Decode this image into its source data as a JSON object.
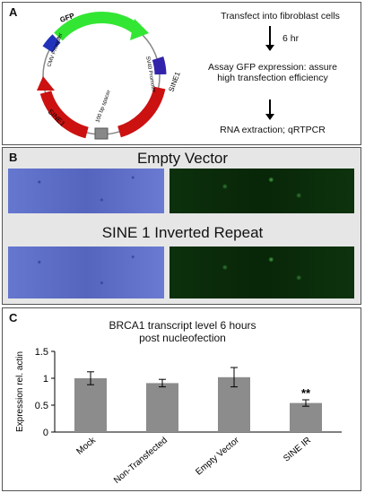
{
  "panel_a": {
    "label": "A",
    "plasmid_labels": {
      "gfp": "GFP",
      "cmv": "CMV Promoter",
      "sv40": "SV40 Promoter",
      "sine1_right": "SINE1",
      "sine1_left": "SINE1",
      "spacer": "100 bp spacer"
    },
    "steps": [
      "Transfect into fibroblast cells",
      "6 hr",
      "Assay GFP expression: assure high transfection efficiency",
      "RNA extraction; qRTPCR"
    ],
    "colors": {
      "gfp": "#22dd22",
      "sine": "#cc1111",
      "promoter": "#2233aa",
      "spacer": "#888888"
    }
  },
  "panel_b": {
    "label": "B",
    "titles": [
      "Empty Vector",
      "SINE 1 Inverted Repeat"
    ]
  },
  "panel_c": {
    "label": "C",
    "title_line1": "BRCA1 transcript level 6 hours",
    "title_line2": "post nucleofection"
  },
  "chart_data": {
    "type": "bar",
    "title": "BRCA1 transcript level 6 hours post nucleofection",
    "categories": [
      "Mock",
      "Non-Transfected",
      "Empty Vector",
      "SINE IR"
    ],
    "values": [
      1.0,
      0.91,
      1.02,
      0.54
    ],
    "errors": [
      0.12,
      0.07,
      0.18,
      0.06
    ],
    "annotations": [
      "",
      "",
      "",
      "**"
    ],
    "xlabel": "",
    "ylabel": "Expression rel. actin",
    "ylim": [
      0,
      1.5
    ],
    "yticks": [
      "0",
      "0.5",
      "1",
      "1.5"
    ],
    "grid": false,
    "bar_color": "#8c8c8c"
  }
}
